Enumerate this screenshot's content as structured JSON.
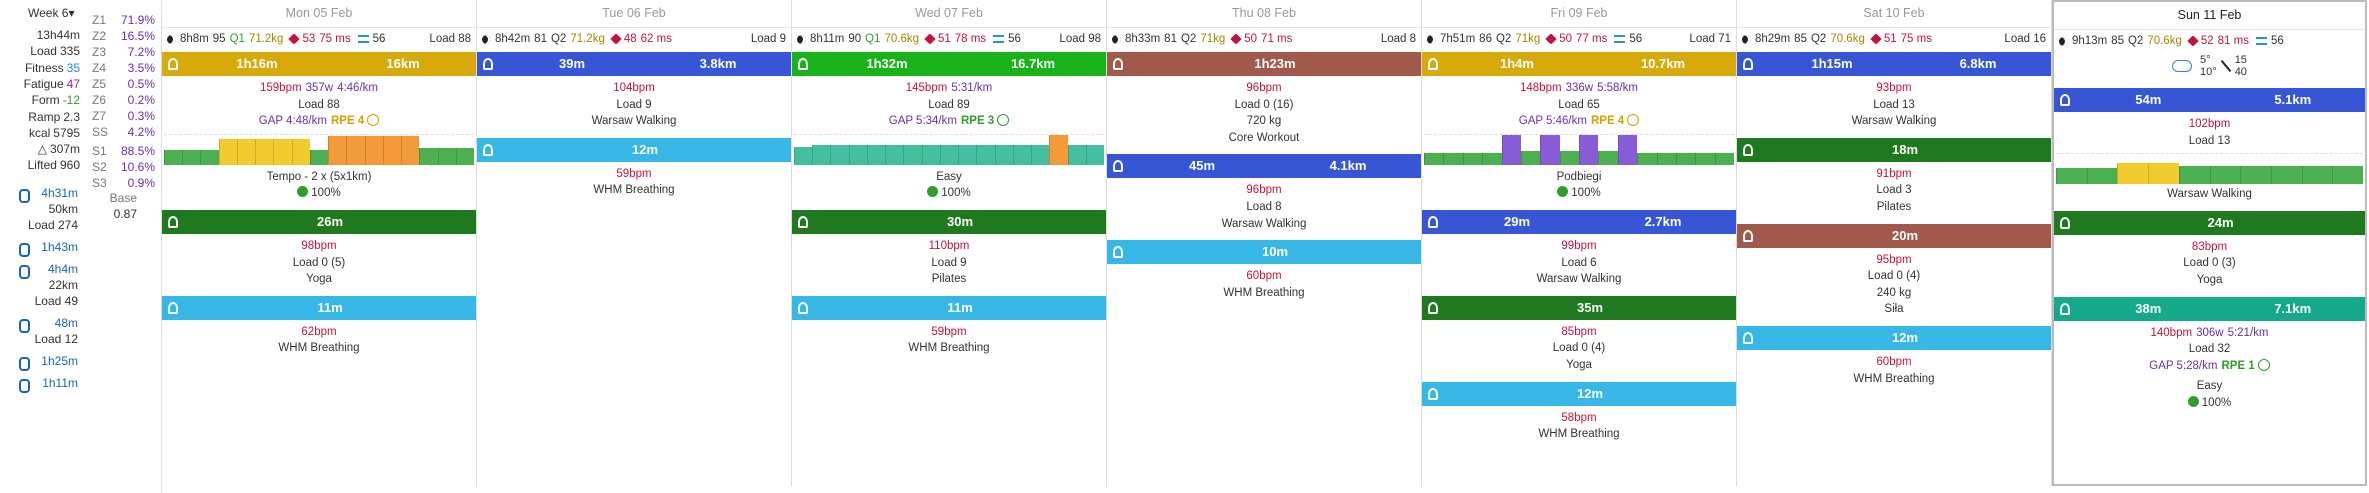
{
  "sidebar": {
    "week": "Week 6▾",
    "totals": [
      {
        "label": "",
        "value": "13h44m"
      },
      {
        "label": "Load",
        "value": "335"
      },
      {
        "label": "Fitness",
        "value": "35",
        "color": "#1e88e5"
      },
      {
        "label": "Fatigue",
        "value": "47",
        "color": "#8e24aa"
      },
      {
        "label": "Form",
        "value": "-12",
        "color": "#2e9e2e"
      },
      {
        "label": "Ramp",
        "value": "2.3"
      },
      {
        "label": "kcal",
        "value": "5795"
      },
      {
        "label": "△",
        "value": "307m"
      },
      {
        "label": "Lifted",
        "value": "960"
      }
    ],
    "zones": [
      {
        "label": "Z1",
        "value": "71.9%"
      },
      {
        "label": "Z2",
        "value": "16.5%"
      },
      {
        "label": "Z3",
        "value": "7.2%"
      },
      {
        "label": "Z4",
        "value": "3.5%"
      },
      {
        "label": "Z5",
        "value": "0.5%"
      },
      {
        "label": "Z6",
        "value": "0.2%"
      },
      {
        "label": "Z7",
        "value": "0.3%"
      },
      {
        "label": "SS",
        "value": "4.2%"
      },
      {
        "label": "S1",
        "value": "88.5%"
      },
      {
        "label": "S2",
        "value": "10.6%"
      },
      {
        "label": "S3",
        "value": "0.9%"
      }
    ],
    "base": {
      "label": "Base",
      "value": "0.87"
    },
    "sports": [
      {
        "time": "4h31m",
        "distance": "50km",
        "load": "Load 274"
      },
      {
        "time": "1h43m"
      },
      {
        "time": "4h4m",
        "distance": "22km",
        "load": "Load 49"
      },
      {
        "time": "48m",
        "load": "Load 12"
      },
      {
        "time": "1h25m"
      },
      {
        "time": "1h11m"
      }
    ]
  },
  "days": [
    {
      "date": "Mon 05 Feb",
      "stats": {
        "sleep": "8h8m",
        "score": "95",
        "quality": "Q1",
        "weight": "71.2kg",
        "rhr": "53",
        "hrv": "75 ms",
        "metric": "56",
        "load": "Load 88"
      },
      "activities": [
        {
          "color": "#d8a90a",
          "duration": "1h16m",
          "distance": "16km",
          "hr": "159bpm",
          "power": "357w",
          "pace": "4:46/km",
          "load": "Load 88",
          "gap": "GAP 4:48/km",
          "rpe": "RPE 4",
          "rpe_color": "#d4a000",
          "workout": "Tempo - 2 x (5x1km)",
          "compliance": "100%"
        },
        {
          "color": "#1f7a1f",
          "duration": "26m",
          "hr": "98bpm",
          "load": "Load 0 (5)",
          "name": "Yoga"
        },
        {
          "color": "#36b7e6",
          "duration": "11m",
          "hr": "62bpm",
          "name": "WHM Breathing"
        }
      ]
    },
    {
      "date": "Tue 06 Feb",
      "stats": {
        "sleep": "8h42m",
        "score": "81",
        "quality": "Q2",
        "weight": "71.2kg",
        "rhr": "48",
        "hrv": "62 ms",
        "load": "Load 9"
      },
      "activities": [
        {
          "color": "#3656d6",
          "duration": "39m",
          "distance": "3.8km",
          "hr": "104bpm",
          "load": "Load 9",
          "name": "Warsaw Walking"
        },
        {
          "color": "#36b7e6",
          "duration": "12m",
          "hr": "59bpm",
          "name": "WHM Breathing"
        }
      ]
    },
    {
      "date": "Wed 07 Feb",
      "stats": {
        "sleep": "8h11m",
        "score": "90",
        "quality": "Q1",
        "weight": "70.6kg",
        "rhr": "51",
        "hrv": "78 ms",
        "metric": "56",
        "load": "Load 98"
      },
      "activities": [
        {
          "color": "#18b318",
          "duration": "1h32m",
          "distance": "16.7km",
          "hr": "145bpm",
          "pace": "5:31/km",
          "load": "Load 89",
          "gap": "GAP 5:34/km",
          "rpe": "RPE 3",
          "rpe_color": "#2e9e2e",
          "workout": "Easy",
          "compliance": "100%"
        },
        {
          "color": "#1f7a1f",
          "duration": "30m",
          "hr": "110bpm",
          "load": "Load 9",
          "name": "Pilates"
        },
        {
          "color": "#36b7e6",
          "duration": "11m",
          "hr": "59bpm",
          "name": "WHM Breathing"
        }
      ]
    },
    {
      "date": "Thu 08 Feb",
      "stats": {
        "sleep": "8h33m",
        "score": "81",
        "quality": "Q2",
        "weight": "71kg",
        "rhr": "50",
        "hrv": "71 ms",
        "load": "Load 8"
      },
      "activities": [
        {
          "color": "#a0594a",
          "duration": "1h23m",
          "hr": "96bpm",
          "load": "Load 0 (16)",
          "weight": "720 kg",
          "name": "Core Workout"
        },
        {
          "color": "#3656d6",
          "duration": "45m",
          "distance": "4.1km",
          "hr": "96bpm",
          "load": "Load 8",
          "name": "Warsaw Walking"
        },
        {
          "color": "#36b7e6",
          "duration": "10m",
          "hr": "60bpm",
          "name": "WHM Breathing"
        }
      ]
    },
    {
      "date": "Fri 09 Feb",
      "stats": {
        "sleep": "7h51m",
        "score": "86",
        "quality": "Q2",
        "weight": "71kg",
        "rhr": "50",
        "hrv": "77 ms",
        "metric": "56",
        "load": "Load 71"
      },
      "activities": [
        {
          "color": "#d8a90a",
          "duration": "1h4m",
          "distance": "10.7km",
          "hr": "148bpm",
          "power": "336w",
          "pace": "5:58/km",
          "load": "Load 65",
          "gap": "GAP 5:46/km",
          "rpe": "RPE 4",
          "rpe_color": "#d4a000",
          "workout": "Podbiegi",
          "compliance": "100%"
        },
        {
          "color": "#3656d6",
          "duration": "29m",
          "distance": "2.7km",
          "hr": "99bpm",
          "load": "Load 6",
          "name": "Warsaw Walking"
        },
        {
          "color": "#1f7a1f",
          "duration": "35m",
          "hr": "85bpm",
          "load": "Load 0 (4)",
          "name": "Yoga"
        },
        {
          "color": "#36b7e6",
          "duration": "12m",
          "hr": "58bpm",
          "name": "WHM Breathing"
        }
      ]
    },
    {
      "date": "Sat 10 Feb",
      "stats": {
        "sleep": "8h29m",
        "score": "85",
        "quality": "Q2",
        "weight": "70.6kg",
        "rhr": "51",
        "hrv": "75 ms",
        "load": "Load 16"
      },
      "activities": [
        {
          "color": "#3656d6",
          "duration": "1h15m",
          "distance": "6.8km",
          "hr": "93bpm",
          "load": "Load 13",
          "name": "Warsaw Walking"
        },
        {
          "color": "#1f7a1f",
          "duration": "18m",
          "hr": "91bpm",
          "load": "Load 3",
          "name": "Pilates"
        },
        {
          "color": "#a0594a",
          "duration": "20m",
          "hr": "95bpm",
          "load": "Load 0 (4)",
          "weight": "240 kg",
          "name": "Siła"
        },
        {
          "color": "#36b7e6",
          "duration": "12m",
          "hr": "60bpm",
          "name": "WHM Breathing"
        }
      ]
    },
    {
      "date": "Sun 11 Feb",
      "stats": {
        "sleep": "9h13m",
        "score": "85",
        "quality": "Q2",
        "weight": "70.6kg",
        "rhr": "52",
        "hrv": "81 ms",
        "metric": "56"
      },
      "weather": {
        "low": "5°",
        "high": "10°",
        "wind": "15",
        "gust": "40"
      },
      "activities": [
        {
          "color": "#3656d6",
          "duration": "54m",
          "distance": "5.1km",
          "hr": "102bpm",
          "load": "Load 13",
          "name": "Warsaw Walking"
        },
        {
          "color": "#1f7a1f",
          "duration": "24m",
          "hr": "83bpm",
          "load": "Load 0 (3)",
          "name": "Yoga"
        },
        {
          "color": "#14a98a",
          "duration": "38m",
          "distance": "7.1km",
          "hr": "140bpm",
          "power": "306w",
          "pace": "5:21/km",
          "load": "Load 32",
          "gap": "GAP 5:28/km",
          "rpe": "RPE 1",
          "rpe_color": "#2e9e2e",
          "workout": "Easy",
          "compliance": "100%"
        }
      ]
    }
  ]
}
